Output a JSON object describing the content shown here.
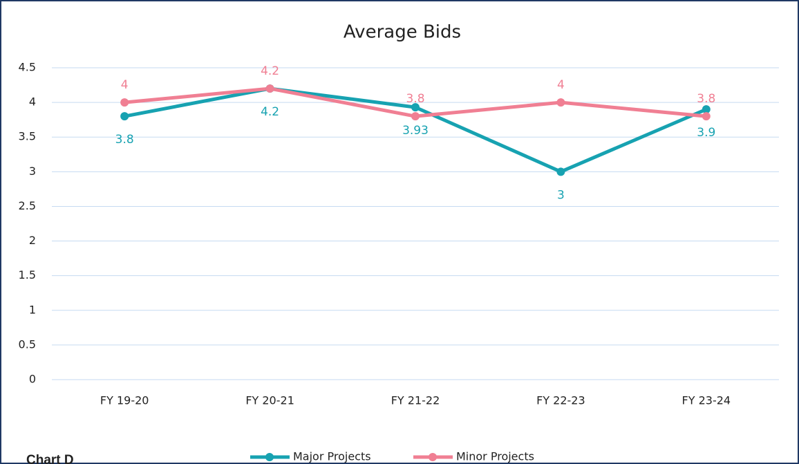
{
  "chart_data": {
    "type": "line",
    "title": "Average Bids",
    "caption": "Chart D",
    "categories": [
      "FY 19-20",
      "FY 20-21",
      "FY 21-22",
      "FY 22-23",
      "FY 23-24"
    ],
    "series": [
      {
        "name": "Major Projects",
        "color": "#17a2b1",
        "values": [
          3.8,
          4.2,
          3.93,
          3,
          3.9
        ]
      },
      {
        "name": "Minor Projects",
        "color": "#f07f93",
        "values": [
          4,
          4.2,
          3.8,
          4,
          3.8
        ]
      }
    ],
    "ylim": [
      0,
      4.5
    ],
    "yticks": [
      0,
      0.5,
      1,
      1.5,
      2,
      2.5,
      3,
      3.5,
      4,
      4.5
    ],
    "grid": true,
    "legend": "bottom"
  }
}
